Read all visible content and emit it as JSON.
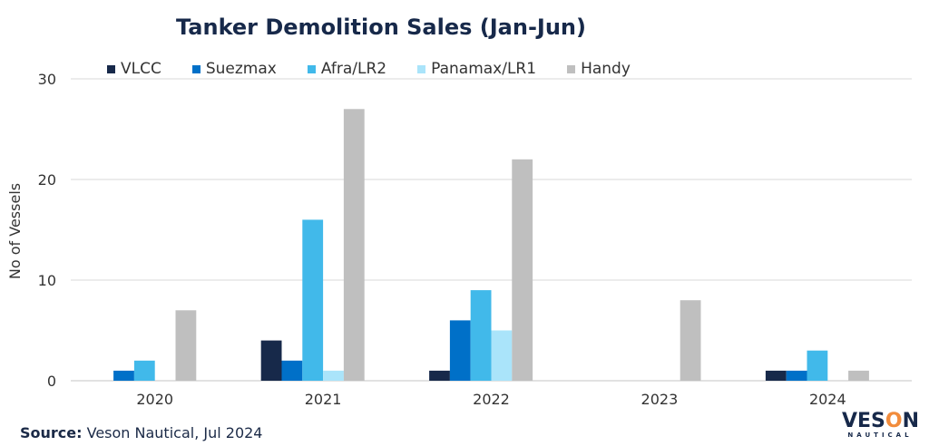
{
  "chart_data": {
    "type": "bar",
    "title": "Tanker Demolition Sales (Jan-Jun)",
    "xlabel": "",
    "ylabel": "No of Vessels",
    "ylim": [
      0,
      30
    ],
    "yticks": [
      "0",
      "10",
      "20",
      "30"
    ],
    "grid": true,
    "legend_position": "top",
    "categories": [
      "2020",
      "2021",
      "2022",
      "2023",
      "2024"
    ],
    "series": [
      {
        "name": "VLCC",
        "color": "#17294a",
        "values": [
          0,
          4,
          1,
          0,
          1
        ]
      },
      {
        "name": "Suezmax",
        "color": "#0070c8",
        "values": [
          1,
          2,
          6,
          0,
          1
        ]
      },
      {
        "name": "Afra/LR2",
        "color": "#41b9ea",
        "values": [
          2,
          16,
          9,
          0,
          3
        ]
      },
      {
        "name": "Panamax/LR1",
        "color": "#aae4fa",
        "values": [
          0,
          1,
          5,
          0,
          0
        ]
      },
      {
        "name": "Handy",
        "color": "#bfbfbf",
        "values": [
          7,
          27,
          22,
          8,
          1
        ]
      }
    ]
  },
  "source": {
    "label": "Source:",
    "text": " Veson Nautical, Jul 2024"
  },
  "logo": {
    "name": "VESON",
    "sub": "NAUTICAL"
  }
}
